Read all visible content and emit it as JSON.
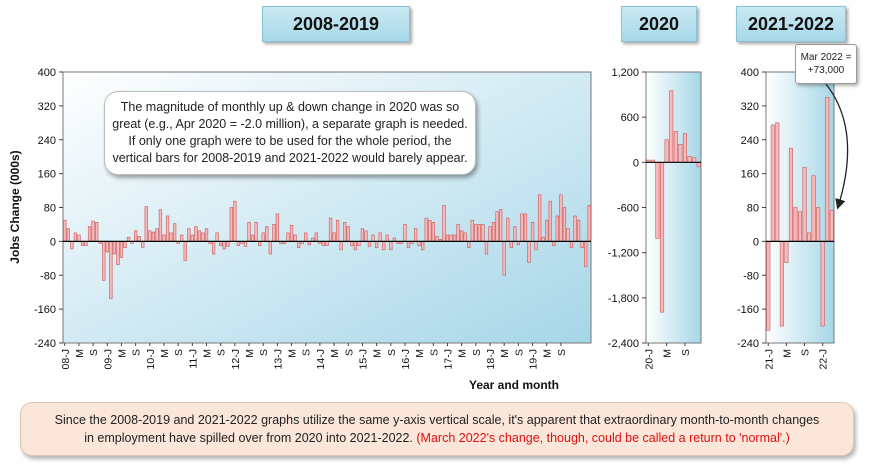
{
  "titles": {
    "p1": "2008-2019",
    "p2": "2020",
    "p3": "2021-2022"
  },
  "note": "The magnitude of monthly up & down change in 2020 was so great (e.g., Apr 2020 = -2.0 million), a separate graph is needed. If only one graph were to be used for the whole period, the vertical bars for 2008-2019 and 2021-2022 would barely appear.",
  "callout": {
    "line1": "Mar 2022 =",
    "line2": "+73,000"
  },
  "footer": {
    "text": "Since the 2008-2019 and 2021-2022 graphs utilize the same y-axis vertical scale, it's apparent that extraordinary month-to-month changes in employment have spilled over from 2020 into 2021-2022.",
    "red": "(March 2022's change, though, could be called a return to 'normal'.)"
  },
  "colors": {
    "bar_fill": "#f7b9b9",
    "bar_stroke": "#c85a5a",
    "plot_bg_light": "#ffffff",
    "plot_bg_dark": "#a6d6e8",
    "red_text": "#e01010"
  },
  "chart_data": [
    {
      "type": "bar",
      "title": "2008-2019",
      "ylabel": "Jobs Change (000s)",
      "xlabel": "Year and month",
      "ylim": [
        -240,
        400
      ],
      "yticks": [
        -240,
        -160,
        -80,
        0,
        80,
        160,
        240,
        320,
        400
      ],
      "ytick_labels": [
        "-240",
        "-160",
        "-80",
        "0",
        "80",
        "160",
        "240",
        "320",
        "400"
      ],
      "xtick_labels": [
        "08-J",
        "M",
        "S",
        "09-J",
        "M",
        "S",
        "10-J",
        "M",
        "S",
        "11-J",
        "M",
        "S",
        "12-J",
        "M",
        "S",
        "13-J",
        "M",
        "S",
        "14-J",
        "M",
        "S",
        "15-J",
        "M",
        "S",
        "16-J",
        "M",
        "S",
        "17-J",
        "M",
        "S",
        "18-J",
        "M",
        "S",
        "19-J",
        "M",
        "S"
      ],
      "values": [
        50,
        30,
        -18,
        20,
        15,
        -10,
        -10,
        35,
        48,
        45,
        -5,
        -92,
        -25,
        -135,
        -30,
        -55,
        -38,
        -15,
        10,
        -5,
        25,
        12,
        -14,
        82,
        25,
        22,
        30,
        75,
        15,
        60,
        20,
        42,
        -5,
        15,
        -45,
        30,
        15,
        35,
        25,
        20,
        30,
        -5,
        -30,
        20,
        -10,
        -18,
        -12,
        80,
        95,
        -10,
        -5,
        -12,
        45,
        15,
        45,
        -10,
        20,
        35,
        -30,
        40,
        65,
        -5,
        -5,
        20,
        38,
        15,
        -15,
        -5,
        20,
        -8,
        8,
        20,
        -5,
        -10,
        -10,
        55,
        20,
        50,
        -20,
        45,
        35,
        -10,
        -20,
        -10,
        30,
        25,
        -12,
        15,
        -15,
        20,
        -20,
        15,
        -20,
        8,
        -5,
        -5,
        40,
        -15,
        -5,
        30,
        -10,
        -20,
        55,
        50,
        45,
        12,
        5,
        85,
        15,
        15,
        15,
        40,
        25,
        20,
        -15,
        50,
        40,
        40,
        40,
        -30,
        35,
        45,
        70,
        75,
        -80,
        55,
        -15,
        35,
        -8,
        65,
        65,
        -50,
        45,
        -20,
        110,
        10,
        50,
        95,
        -10,
        60,
        110,
        80,
        30,
        -15,
        60,
        50,
        -15,
        -60,
        85
      ]
    },
    {
      "type": "bar",
      "title": "2020",
      "ylim": [
        -2400,
        1200
      ],
      "yticks": [
        -2400,
        -1800,
        -1200,
        -600,
        0,
        600,
        1200
      ],
      "ytick_labels": [
        "-2,400",
        "-1,800",
        "-1,200",
        "-600",
        "0",
        "600",
        "1,200"
      ],
      "xtick_labels": [
        "20-J",
        "M",
        "S"
      ],
      "values": [
        30,
        30,
        -1010,
        -1990,
        300,
        950,
        410,
        240,
        380,
        80,
        60,
        -60
      ]
    },
    {
      "type": "bar",
      "title": "2021-2022",
      "ylim": [
        -240,
        400
      ],
      "yticks": [
        -240,
        -160,
        -80,
        0,
        80,
        160,
        240,
        320,
        400
      ],
      "ytick_labels": [
        "-240",
        "-160",
        "-80",
        "0",
        "80",
        "160",
        "240",
        "320",
        "400"
      ],
      "xtick_labels": [
        "21-J",
        "M",
        "S",
        "22-J"
      ],
      "values": [
        -210,
        275,
        280,
        -200,
        -50,
        220,
        80,
        70,
        175,
        20,
        155,
        80,
        -200,
        340,
        73
      ],
      "annotation": "Mar 2022 = +73,000"
    }
  ]
}
